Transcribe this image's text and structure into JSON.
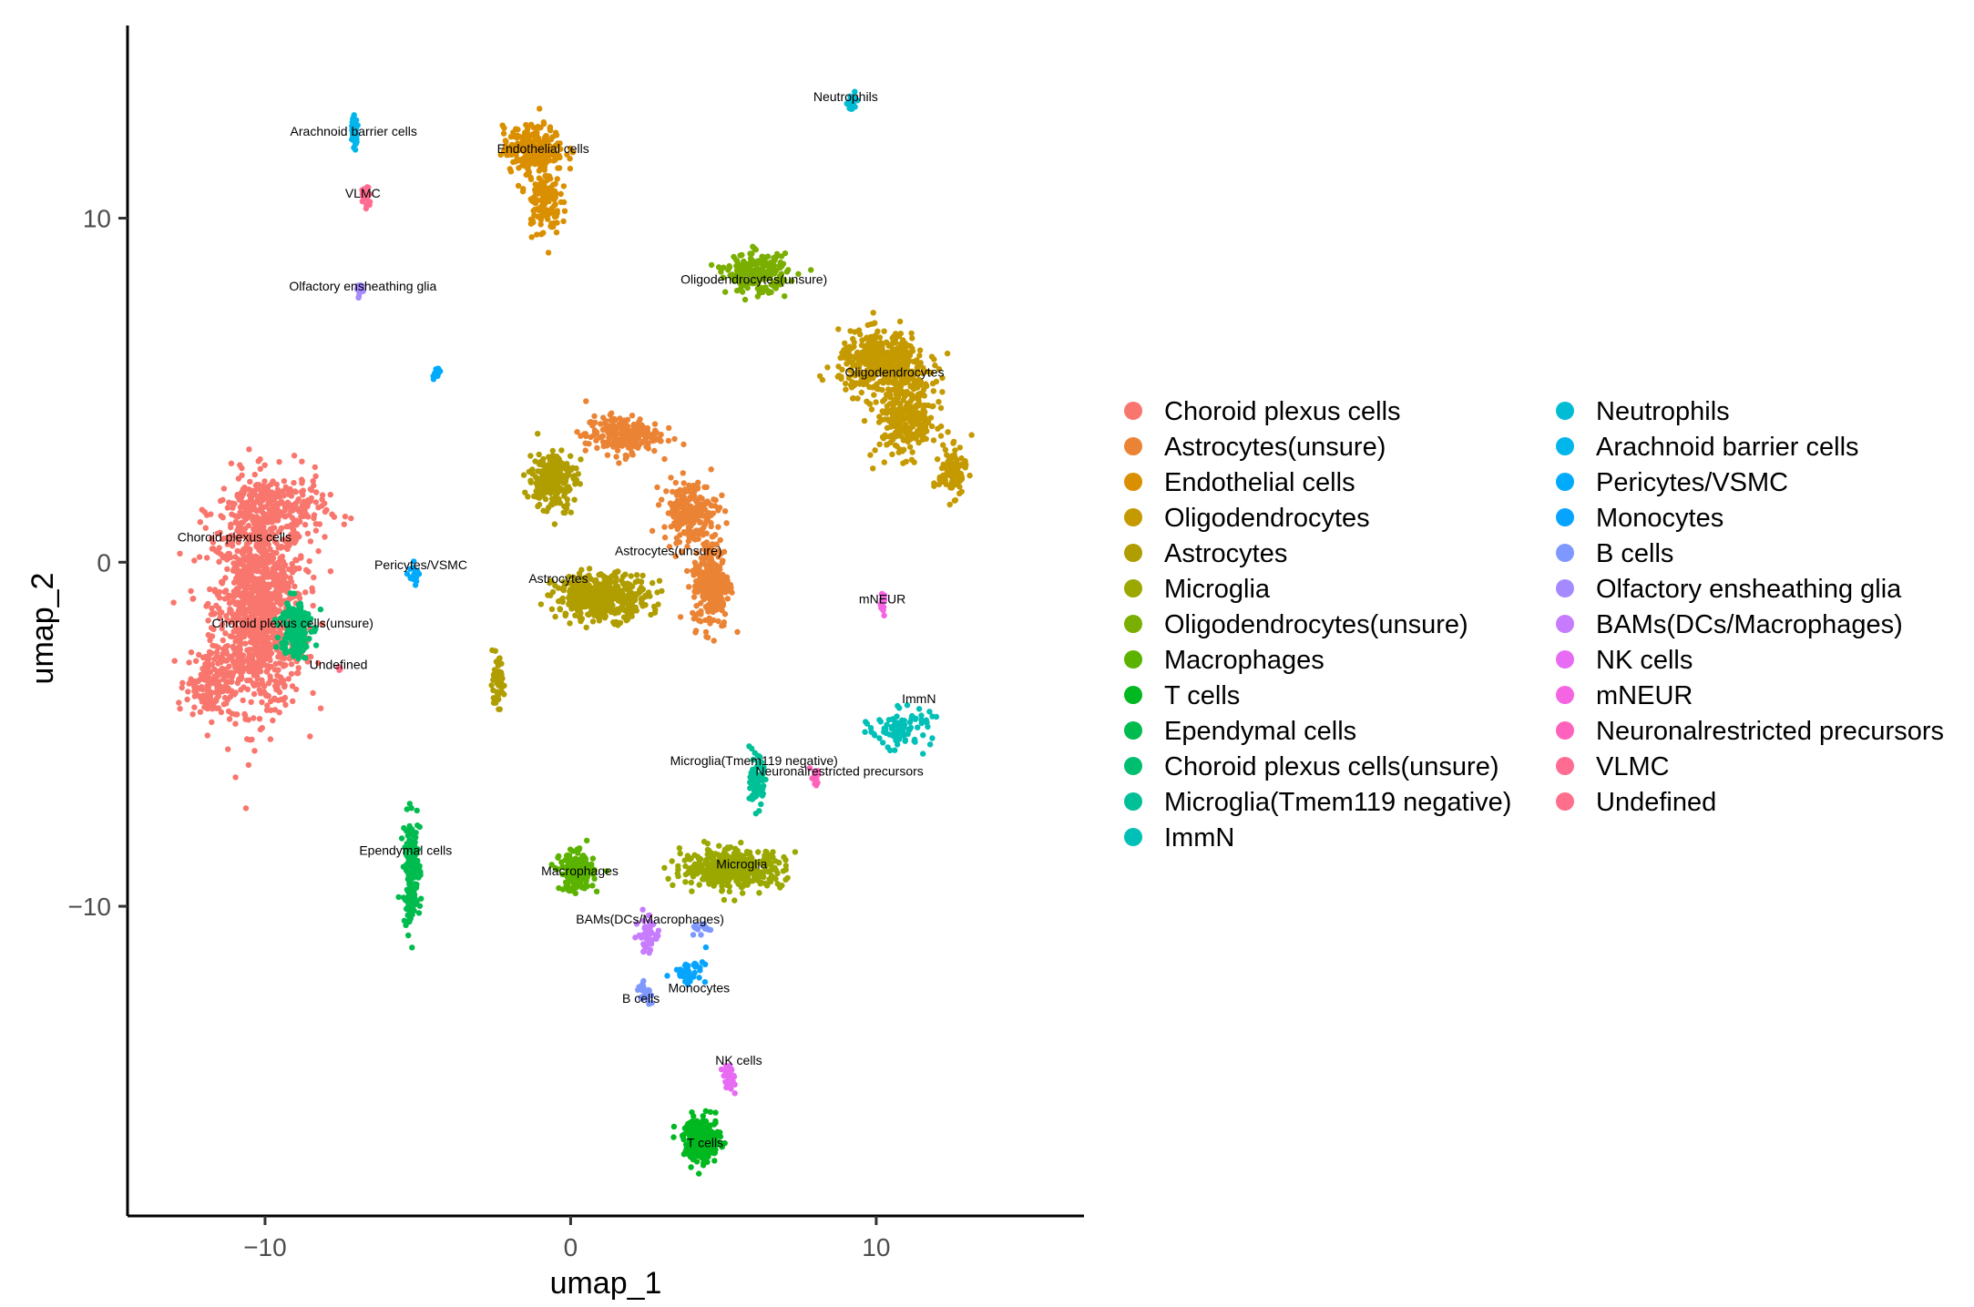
{
  "chart_data": {
    "type": "scatter",
    "xlabel": "umap_1",
    "ylabel": "umap_2",
    "xlim": [
      -14.5,
      16.8
    ],
    "ylim": [
      -19.0,
      15.6
    ],
    "xticks": [
      -10,
      0,
      10
    ],
    "yticks": [
      -10,
      0,
      10
    ],
    "xtick_labels": [
      "−10",
      "0",
      "10"
    ],
    "ytick_labels": [
      "−10",
      "0",
      "10"
    ],
    "grid": false,
    "legend_position": "right",
    "clusters": [
      {
        "name": "Choroid plexus cells",
        "color": "#F8766D",
        "label": "Choroid plexus cells",
        "label_at": [
          -11.0,
          0.6
        ],
        "blobs": [
          {
            "c": [
              -10.2,
              -1.4
            ],
            "s": [
              1.35,
              2.6
            ],
            "n": 1100
          },
          {
            "c": [
              -9.8,
              1.5
            ],
            "s": [
              1.6,
              1.0
            ],
            "n": 300
          },
          {
            "c": [
              -11.8,
              -3.5
            ],
            "s": [
              0.7,
              0.9
            ],
            "n": 160
          }
        ]
      },
      {
        "name": "Astrocytes(unsure)",
        "color": "#EB8335",
        "label": "Astrocytes(unsure)",
        "label_at": [
          3.2,
          0.2
        ],
        "blobs": [
          {
            "c": [
              4.6,
              -0.6
            ],
            "s": [
              0.55,
              1.2
            ],
            "n": 280
          },
          {
            "c": [
              3.9,
              1.5
            ],
            "s": [
              0.8,
              0.8
            ],
            "n": 200
          },
          {
            "c": [
              1.7,
              3.7
            ],
            "s": [
              1.1,
              0.5
            ],
            "n": 220
          }
        ]
      },
      {
        "name": "Endothelial cells",
        "color": "#DA8F00",
        "label": "Endothelial cells",
        "label_at": [
          -0.9,
          11.9
        ],
        "blobs": [
          {
            "c": [
              -1.2,
              12.0
            ],
            "s": [
              0.9,
              0.6
            ],
            "n": 250
          },
          {
            "c": [
              -0.9,
              10.5
            ],
            "s": [
              0.5,
              0.9
            ],
            "n": 130
          }
        ]
      },
      {
        "name": "Oligodendrocytes",
        "color": "#C59900",
        "label": "Oligodendrocytes",
        "label_at": [
          10.6,
          5.4
        ],
        "blobs": [
          {
            "c": [
              10.2,
              5.8
            ],
            "s": [
              1.3,
              0.8
            ],
            "n": 400
          },
          {
            "c": [
              11.0,
              4.2
            ],
            "s": [
              0.9,
              1.0
            ],
            "n": 300
          },
          {
            "c": [
              12.5,
              2.6
            ],
            "s": [
              0.4,
              0.6
            ],
            "n": 120
          }
        ]
      },
      {
        "name": "Astrocytes",
        "color": "#B09D00",
        "label": "Astrocytes",
        "label_at": [
          -0.4,
          -0.6
        ],
        "blobs": [
          {
            "c": [
              1.0,
              -1.0
            ],
            "s": [
              1.4,
              0.6
            ],
            "n": 400
          },
          {
            "c": [
              -0.6,
              2.4
            ],
            "s": [
              0.7,
              0.8
            ],
            "n": 220
          },
          {
            "c": [
              -2.4,
              -3.5
            ],
            "s": [
              0.2,
              0.6
            ],
            "n": 60
          }
        ]
      },
      {
        "name": "Microglia",
        "color": "#9AA800",
        "label": "Microglia",
        "label_at": [
          5.6,
          -8.9
        ],
        "blobs": [
          {
            "c": [
              5.3,
              -8.9
            ],
            "s": [
              1.5,
              0.5
            ],
            "n": 420
          }
        ]
      },
      {
        "name": "Oligodendrocytes(unsure)",
        "color": "#7AAE00",
        "label": "Oligodendrocytes(unsure)",
        "label_at": [
          6.0,
          8.1
        ],
        "blobs": [
          {
            "c": [
              6.1,
              8.4
            ],
            "s": [
              0.9,
              0.5
            ],
            "n": 230
          }
        ]
      },
      {
        "name": "Macrophages",
        "color": "#5BB300",
        "label": "Macrophages",
        "label_at": [
          0.3,
          -9.1
        ],
        "blobs": [
          {
            "c": [
              0.2,
              -9.0
            ],
            "s": [
              0.5,
              0.5
            ],
            "n": 200
          }
        ]
      },
      {
        "name": "T cells",
        "color": "#00B81F",
        "label": "T cells",
        "label_at": [
          4.4,
          -17.0
        ],
        "blobs": [
          {
            "c": [
              4.3,
              -16.8
            ],
            "s": [
              0.55,
              0.6
            ],
            "n": 220
          }
        ]
      },
      {
        "name": "Ependymal cells",
        "color": "#00BB4E",
        "label": "Ependymal cells",
        "label_at": [
          -5.4,
          -8.5
        ],
        "blobs": [
          {
            "c": [
              -5.2,
              -9.0
            ],
            "s": [
              0.25,
              1.4
            ],
            "n": 170
          }
        ]
      },
      {
        "name": "Choroid plexus cells(unsure)",
        "color": "#00BE70",
        "label": "Choroid plexus cells(unsure)",
        "label_at": [
          -9.1,
          -1.9
        ],
        "blobs": [
          {
            "c": [
              -9.0,
              -1.9
            ],
            "s": [
              0.45,
              0.8
            ],
            "n": 190
          }
        ]
      },
      {
        "name": "Microglia(Tmem119 negative)",
        "color": "#00C098",
        "label": "Microglia(Tmem119 negative)",
        "label_at": [
          6.0,
          -5.9
        ],
        "blobs": [
          {
            "c": [
              6.1,
              -6.4
            ],
            "s": [
              0.2,
              0.6
            ],
            "n": 110
          }
        ]
      },
      {
        "name": "ImmN",
        "color": "#00C0B8",
        "label": "ImmN",
        "label_at": [
          11.4,
          -4.1
        ],
        "blobs": [
          {
            "c": [
              10.8,
              -4.8
            ],
            "s": [
              0.9,
              0.5
            ],
            "n": 90
          }
        ]
      },
      {
        "name": "Neutrophils",
        "color": "#00BCD5",
        "label": "Neutrophils",
        "label_at": [
          9.0,
          13.4
        ],
        "blobs": [
          {
            "c": [
              9.2,
              13.3
            ],
            "s": [
              0.12,
              0.25
            ],
            "n": 30
          }
        ]
      },
      {
        "name": "Arachnoid barrier cells",
        "color": "#00B6EB",
        "label": "Arachnoid barrier cells",
        "label_at": [
          -7.1,
          12.4
        ],
        "blobs": [
          {
            "c": [
              -7.1,
              12.5
            ],
            "s": [
              0.12,
              0.4
            ],
            "n": 40
          }
        ]
      },
      {
        "name": "Pericytes/VSMC",
        "color": "#00ABFD",
        "label": "Pericytes/VSMC",
        "label_at": [
          -4.9,
          -0.2
        ],
        "blobs": [
          {
            "c": [
              -5.1,
              -0.4
            ],
            "s": [
              0.15,
              0.3
            ],
            "n": 25
          },
          {
            "c": [
              -4.4,
              5.5
            ],
            "s": [
              0.1,
              0.2
            ],
            "n": 20
          }
        ]
      },
      {
        "name": "Monocytes",
        "color": "#06A4FF",
        "label": "Monocytes",
        "label_at": [
          4.2,
          -12.5
        ],
        "blobs": [
          {
            "c": [
              3.9,
              -11.9
            ],
            "s": [
              0.5,
              0.3
            ],
            "n": 40
          }
        ]
      },
      {
        "name": "B cells",
        "color": "#7E98FF",
        "label": "B cells",
        "label_at": [
          2.3,
          -12.8
        ],
        "blobs": [
          {
            "c": [
              2.4,
              -12.5
            ],
            "s": [
              0.2,
              0.25
            ],
            "n": 25
          },
          {
            "c": [
              4.3,
              -10.6
            ],
            "s": [
              0.4,
              0.15
            ],
            "n": 15
          }
        ]
      },
      {
        "name": "Olfactory ensheathing glia",
        "color": "#A58AFF",
        "label": "Olfactory ensheathing glia",
        "label_at": [
          -6.8,
          7.9
        ],
        "blobs": [
          {
            "c": [
              -6.9,
              7.9
            ],
            "s": [
              0.15,
              0.2
            ],
            "n": 25
          }
        ]
      },
      {
        "name": "BAMs(DCs/Macrophages)",
        "color": "#C77CFF",
        "label": "BAMs(DCs/Macrophages)",
        "label_at": [
          2.6,
          -10.5
        ],
        "blobs": [
          {
            "c": [
              2.5,
              -10.8
            ],
            "s": [
              0.25,
              0.5
            ],
            "n": 50
          }
        ]
      },
      {
        "name": "NK cells",
        "color": "#E76BF3",
        "label": "NK cells",
        "label_at": [
          5.5,
          -14.6
        ],
        "blobs": [
          {
            "c": [
              5.2,
              -15.0
            ],
            "s": [
              0.2,
              0.35
            ],
            "n": 30
          }
        ]
      },
      {
        "name": "mNEUR",
        "color": "#F564E3",
        "label": "mNEUR",
        "label_at": [
          10.2,
          -1.2
        ],
        "blobs": [
          {
            "c": [
              10.2,
              -1.2
            ],
            "s": [
              0.1,
              0.3
            ],
            "n": 20
          }
        ]
      },
      {
        "name": "Neuronalrestricted precursors",
        "color": "#FF62BC",
        "label": "Neuronalrestricted precursors",
        "label_at": [
          8.8,
          -6.2
        ],
        "blobs": [
          {
            "c": [
              8.0,
              -6.3
            ],
            "s": [
              0.15,
              0.25
            ],
            "n": 15
          }
        ]
      },
      {
        "name": "VLMC",
        "color": "#FF6C91",
        "label": "VLMC",
        "label_at": [
          -6.8,
          10.6
        ],
        "blobs": [
          {
            "c": [
              -6.7,
              10.6
            ],
            "s": [
              0.12,
              0.3
            ],
            "n": 20
          }
        ]
      },
      {
        "name": "Undefined",
        "color": "#FF6E8A",
        "label": "Undefined",
        "label_at": [
          -7.6,
          -3.1
        ],
        "blobs": [
          {
            "c": [
              -7.6,
              -3.1
            ],
            "s": [
              0.08,
              0.08
            ],
            "n": 4
          }
        ]
      }
    ]
  }
}
